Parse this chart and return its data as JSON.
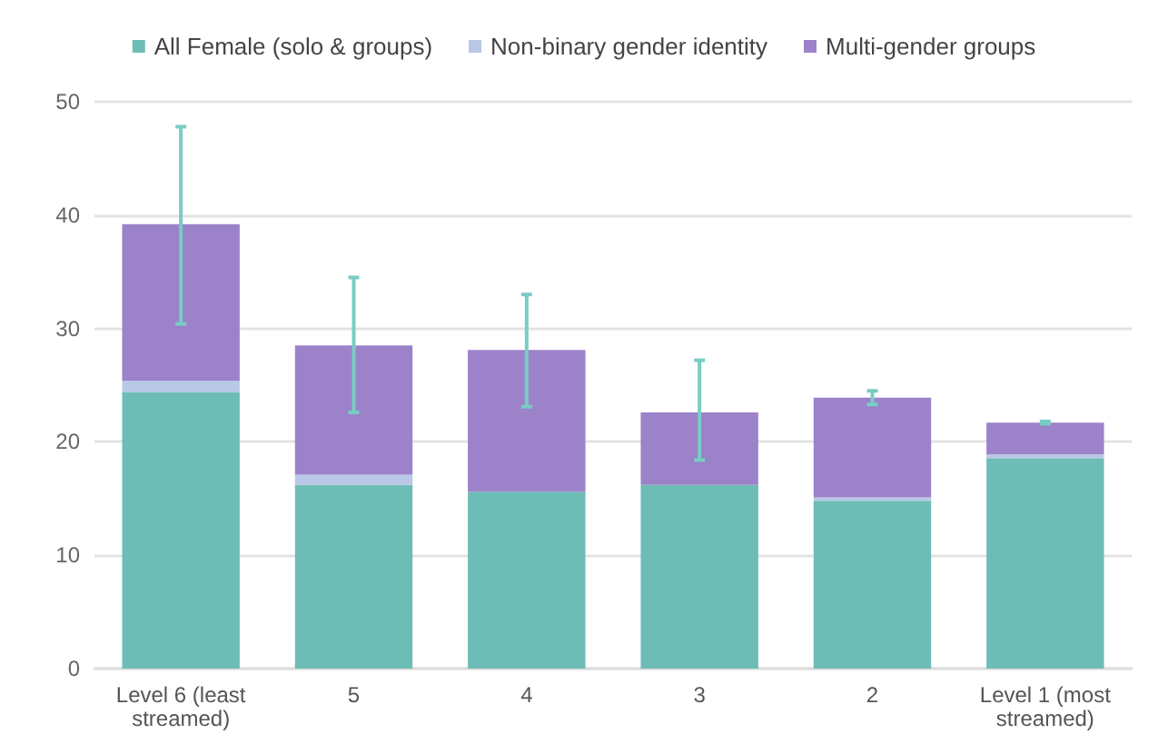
{
  "chart_data": {
    "type": "bar",
    "stacked": true,
    "categories": [
      "Level 6 (least\nstreamed)",
      "5",
      "4",
      "3",
      "2",
      "Level 1 (most\nstreamed)"
    ],
    "series": [
      {
        "name": "All Female (solo & groups)",
        "color": "#6dbdb6",
        "values": [
          24.4,
          16.2,
          15.6,
          16.2,
          14.8,
          18.5
        ]
      },
      {
        "name": "Non-binary gender identity",
        "color": "#b8c8e6",
        "values": [
          1.0,
          0.9,
          0,
          0,
          0.3,
          0.4
        ]
      },
      {
        "name": "Multi-gender groups",
        "color": "#9b82c9",
        "values": [
          13.8,
          11.4,
          12.5,
          6.4,
          8.8,
          2.8
        ],
        "errors": [
          [
            30.4,
            47.8
          ],
          [
            22.6,
            34.5
          ],
          [
            23.1,
            33.0
          ],
          [
            18.4,
            27.2
          ],
          [
            23.3,
            24.5
          ],
          [
            21.6,
            21.8
          ]
        ]
      }
    ],
    "ylim": [
      0,
      50
    ],
    "yticks": [
      0,
      10,
      20,
      30,
      40,
      50
    ],
    "grid": "y",
    "legend": "top"
  }
}
